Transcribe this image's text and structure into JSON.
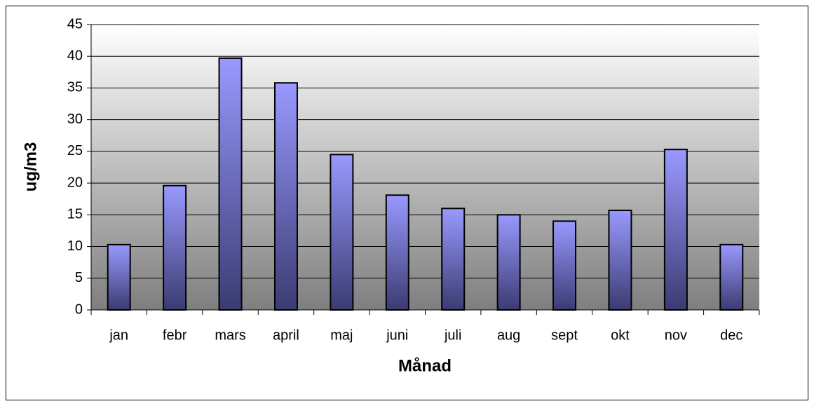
{
  "chart_data": {
    "type": "bar",
    "x_label": "Månad",
    "y_label": "ug/m3",
    "categories": [
      "jan",
      "febr",
      "mars",
      "april",
      "maj",
      "juni",
      "juli",
      "aug",
      "sept",
      "okt",
      "nov",
      "dec"
    ],
    "values": [
      10.3,
      19.6,
      39.7,
      35.8,
      24.5,
      18.1,
      16.0,
      15.0,
      14.0,
      15.7,
      25.3,
      10.3
    ],
    "color": "#9999ff",
    "ylim": [
      0,
      45
    ],
    "yticks": [
      0,
      5,
      10,
      15,
      20,
      25,
      30,
      35,
      40,
      45
    ],
    "grid": true
  }
}
